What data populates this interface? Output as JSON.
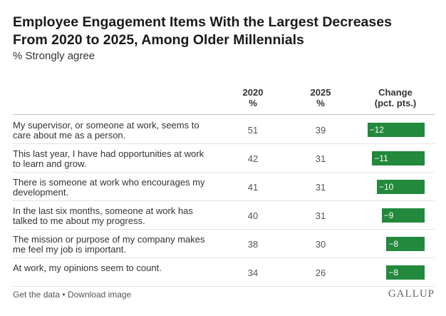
{
  "chart_data": {
    "type": "table",
    "title_line1": "Employee Engagement Items With the Largest Decreases",
    "title_line2": "From 2020 to 2025, Among Older Millennials",
    "subtitle": "% Strongly agree",
    "columns": {
      "y2020": {
        "line1": "2020",
        "line2": "%"
      },
      "y2025": {
        "line1": "2025",
        "line2": "%"
      },
      "change": {
        "line1": "Change",
        "line2": "(pct. pts.)"
      }
    },
    "rows": [
      {
        "label": "My supervisor, or someone at work, seems to care about me as a person.",
        "v2020": 51,
        "v2025": 39,
        "change": -12,
        "change_label": "−12"
      },
      {
        "label": "This last year, I have had opportunities at work to learn and grow.",
        "v2020": 42,
        "v2025": 31,
        "change": -11,
        "change_label": "−11"
      },
      {
        "label": "There is someone at work who encourages my development.",
        "v2020": 41,
        "v2025": 31,
        "change": -10,
        "change_label": "−10"
      },
      {
        "label": "In the last six months, someone at work has talked to me about my progress.",
        "v2020": 40,
        "v2025": 31,
        "change": -9,
        "change_label": "−9"
      },
      {
        "label": "The mission or purpose of my company makes me feel my job is important.",
        "v2020": 38,
        "v2025": 30,
        "change": -8,
        "change_label": "−8"
      },
      {
        "label": "At work, my opinions seem to count.",
        "v2020": 34,
        "v2025": 26,
        "change": -8,
        "change_label": "−8"
      }
    ],
    "change_range": [
      -12,
      0
    ],
    "bar_color": "#22893d"
  },
  "footer": {
    "get_data": "Get the data",
    "separator": "•",
    "download": "Download image",
    "brand": "GALLUP"
  }
}
